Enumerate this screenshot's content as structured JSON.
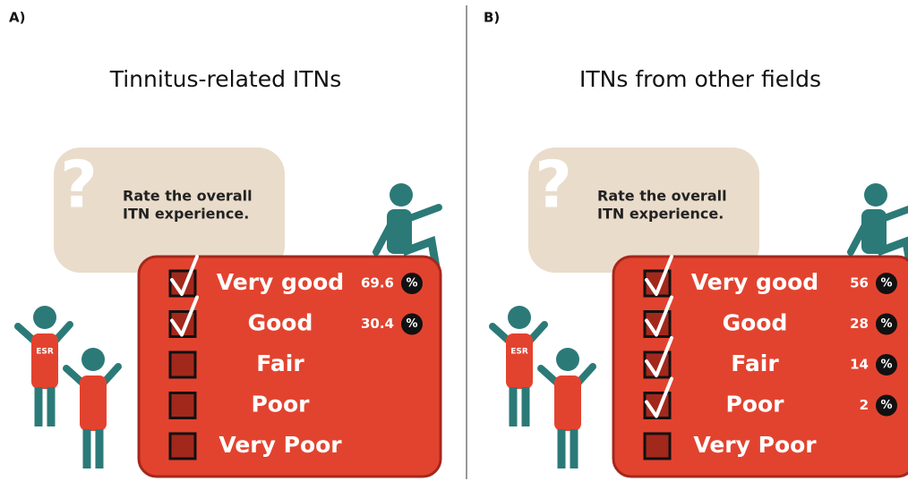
{
  "panels": [
    {
      "label": "A)",
      "title": "Tinnitus-related ITNs",
      "question": [
        "Rate the overall",
        "ITN experience."
      ],
      "shirt_label": "ESR",
      "options": [
        {
          "label": "Very good",
          "value": 69.6,
          "unit": "%"
        },
        {
          "label": "Good",
          "value": 30.4,
          "unit": "%"
        },
        {
          "label": "Fair"
        },
        {
          "label": "Poor"
        },
        {
          "label": "Very Poor"
        }
      ]
    },
    {
      "label": "B)",
      "title": "ITNs from other fields",
      "question": [
        "Rate the overall",
        "ITN experience."
      ],
      "shirt_label": "ESR",
      "options": [
        {
          "label": "Very good",
          "value": 56,
          "unit": "%"
        },
        {
          "label": "Good",
          "value": 28,
          "unit": "%"
        },
        {
          "label": "Fair",
          "value": 14,
          "unit": "%"
        },
        {
          "label": "Poor",
          "value": 2,
          "unit": "%"
        },
        {
          "label": "Very Poor"
        }
      ]
    }
  ]
}
